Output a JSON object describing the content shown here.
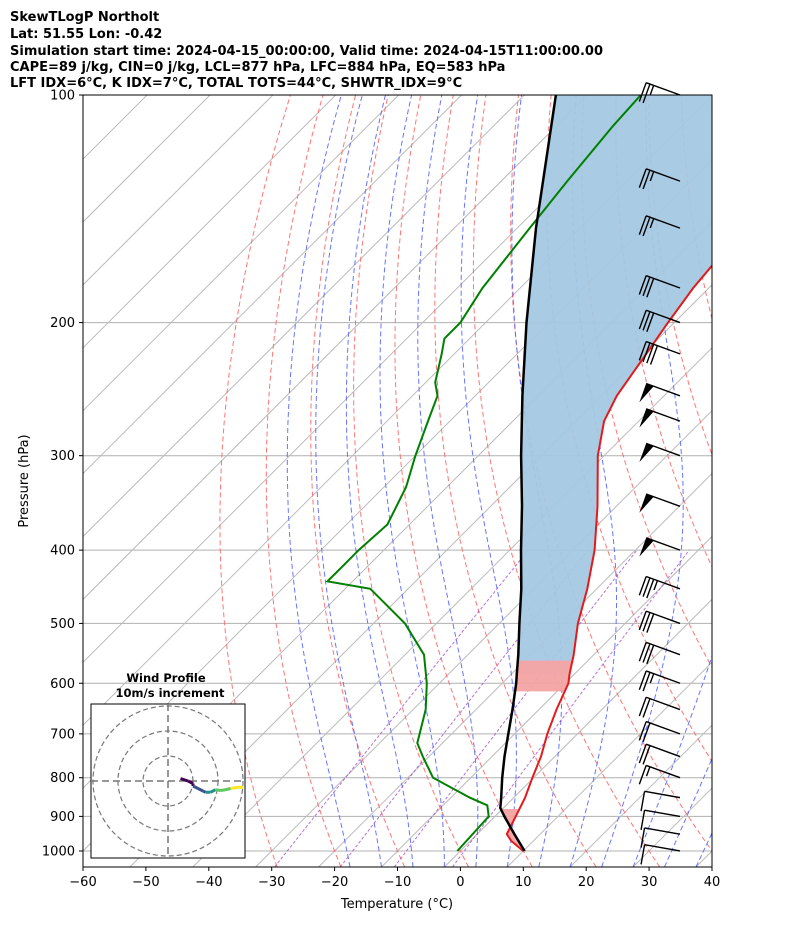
{
  "header": {
    "line1": "SkewTLogP Northolt",
    "line2": "Lat: 51.55   Lon: -0.42",
    "line3": "Simulation start time: 2024-04-15_00:00:00, Valid time: 2024-04-15T11:00:00.00",
    "line4": "CAPE=89 j/kg, CIN=0 j/kg, LCL=877 hPa, LFC=884 hPa, EQ=583 hPa",
    "line5": "LFT IDX=6°C, K IDX=7°C, TOTAL TOTS=44°C, SHWTR_IDX=9°C"
  },
  "inset": {
    "title1": "Wind Profile",
    "title2": "10m/s increment"
  },
  "colors": {
    "temperature": "#e31a1c",
    "dewpoint": "#008000",
    "parcel": "#000000",
    "cape_fill": "#a4c8e1",
    "cin_fill": "#f4a3a3",
    "dry_adiabat": "#ff6666",
    "moist_adiabat": "#5566ff",
    "mixing_ratio": "#9933cc",
    "isotherm": "#bbbbbb",
    "isobar": "#b0b0b0"
  },
  "chart_data": {
    "type": "line",
    "subtype": "skew-T log-P",
    "xlabel": "Temperature (°C)",
    "ylabel": "Pressure (hPa)",
    "xlim": [
      -60,
      40
    ],
    "ylim": [
      1050,
      100
    ],
    "y_scale": "log",
    "xticks": [
      -60,
      -50,
      -40,
      -30,
      -20,
      -10,
      0,
      10,
      20,
      30,
      40
    ],
    "xtick_labels": [
      "−60",
      "−50",
      "−40",
      "−30",
      "−20",
      "−10",
      "0",
      "10",
      "20",
      "30",
      "40"
    ],
    "yticks": [
      1000,
      900,
      800,
      700,
      600,
      500,
      400,
      300,
      200,
      100
    ],
    "ytick_labels": [
      "1000",
      "900",
      "800",
      "700",
      "600",
      "500",
      "400",
      "300",
      "200",
      "100"
    ],
    "grid": true,
    "series": [
      {
        "role": "temperature",
        "color": "#e31a1c",
        "points": [
          [
            1000,
            10.0
          ],
          [
            970,
            6.5
          ],
          [
            950,
            4.7
          ],
          [
            900,
            3.3
          ],
          [
            850,
            1.8
          ],
          [
            800,
            -0.2
          ],
          [
            750,
            -2.2
          ],
          [
            700,
            -4.8
          ],
          [
            650,
            -7.2
          ],
          [
            600,
            -9.5
          ],
          [
            583,
            -10.8
          ],
          [
            550,
            -13.2
          ],
          [
            500,
            -17.5
          ],
          [
            450,
            -21.5
          ],
          [
            400,
            -26.5
          ],
          [
            350,
            -33.0
          ],
          [
            300,
            -41.0
          ],
          [
            270,
            -45.5
          ],
          [
            250,
            -47.5
          ],
          [
            220,
            -49.5
          ],
          [
            200,
            -51.0
          ],
          [
            180,
            -52.5
          ],
          [
            150,
            -54.0
          ],
          [
            130,
            -54.5
          ],
          [
            120,
            -55.0
          ],
          [
            110,
            -55.5
          ],
          [
            100,
            -55.5
          ]
        ]
      },
      {
        "role": "dewpoint",
        "color": "#008000",
        "points": [
          [
            1000,
            -0.5
          ],
          [
            900,
            -1.0
          ],
          [
            870,
            -3.0
          ],
          [
            850,
            -7.0
          ],
          [
            800,
            -16.0
          ],
          [
            750,
            -21.0
          ],
          [
            720,
            -24.0
          ],
          [
            650,
            -28.0
          ],
          [
            600,
            -32.0
          ],
          [
            550,
            -37.0
          ],
          [
            500,
            -45.0
          ],
          [
            450,
            -56.0
          ],
          [
            440,
            -64.0
          ],
          [
            420,
            -64.0
          ],
          [
            400,
            -64.0
          ],
          [
            370,
            -63.5
          ],
          [
            330,
            -66.5
          ],
          [
            300,
            -70.0
          ],
          [
            270,
            -73.5
          ],
          [
            250,
            -76.0
          ],
          [
            240,
            -78.5
          ],
          [
            220,
            -82.0
          ],
          [
            210,
            -84.0
          ],
          [
            200,
            -84.0
          ],
          [
            180,
            -86.0
          ],
          [
            150,
            -88.0
          ],
          [
            130,
            -89.5
          ],
          [
            110,
            -91.0
          ],
          [
            100,
            -91.5
          ]
        ]
      },
      {
        "role": "parcel",
        "color": "#000000",
        "points": [
          [
            1000,
            10.2
          ],
          [
            950,
            5.9
          ],
          [
            900,
            1.5
          ],
          [
            877,
            -0.5
          ],
          [
            850,
            -2.0
          ],
          [
            800,
            -5.0
          ],
          [
            750,
            -8.0
          ],
          [
            700,
            -11.0
          ],
          [
            650,
            -14.2
          ],
          [
            600,
            -17.8
          ],
          [
            583,
            -19.2
          ],
          [
            550,
            -22.0
          ],
          [
            500,
            -26.8
          ],
          [
            450,
            -32.0
          ],
          [
            400,
            -38.2
          ],
          [
            350,
            -45.0
          ],
          [
            300,
            -53.2
          ],
          [
            250,
            -62.5
          ],
          [
            200,
            -73.5
          ],
          [
            150,
            -87.0
          ],
          [
            100,
            -105.0
          ]
        ]
      }
    ],
    "annotations": {
      "cape_region": "LFC (884 hPa) to EQ (583 hPa) parcel/temperature band, blue shaded",
      "cin_region": "red shaded band near 550-600 hPa"
    },
    "wind_barbs": [
      {
        "p": 100,
        "speed_kt": 25,
        "dir_deg": 290
      },
      {
        "p": 130,
        "speed_kt": 25,
        "dir_deg": 290
      },
      {
        "p": 150,
        "speed_kt": 25,
        "dir_deg": 290
      },
      {
        "p": 180,
        "speed_kt": 30,
        "dir_deg": 290
      },
      {
        "p": 200,
        "speed_kt": 30,
        "dir_deg": 290
      },
      {
        "p": 220,
        "speed_kt": 40,
        "dir_deg": 290
      },
      {
        "p": 250,
        "speed_kt": 50,
        "dir_deg": 290
      },
      {
        "p": 270,
        "speed_kt": 50,
        "dir_deg": 290
      },
      {
        "p": 300,
        "speed_kt": 50,
        "dir_deg": 290
      },
      {
        "p": 350,
        "speed_kt": 50,
        "dir_deg": 290
      },
      {
        "p": 400,
        "speed_kt": 50,
        "dir_deg": 290
      },
      {
        "p": 450,
        "speed_kt": 35,
        "dir_deg": 290
      },
      {
        "p": 500,
        "speed_kt": 30,
        "dir_deg": 290
      },
      {
        "p": 550,
        "speed_kt": 30,
        "dir_deg": 290
      },
      {
        "p": 600,
        "speed_kt": 25,
        "dir_deg": 290
      },
      {
        "p": 650,
        "speed_kt": 20,
        "dir_deg": 290
      },
      {
        "p": 700,
        "speed_kt": 20,
        "dir_deg": 290
      },
      {
        "p": 750,
        "speed_kt": 20,
        "dir_deg": 290
      },
      {
        "p": 800,
        "speed_kt": 15,
        "dir_deg": 290
      },
      {
        "p": 850,
        "speed_kt": 10,
        "dir_deg": 280
      },
      {
        "p": 900,
        "speed_kt": 10,
        "dir_deg": 280
      },
      {
        "p": 950,
        "speed_kt": 10,
        "dir_deg": 280
      },
      {
        "p": 1000,
        "speed_kt": 10,
        "dir_deg": 280
      }
    ],
    "wind_profile": {
      "title": "Wind Profile",
      "subtitle": "10m/s increment",
      "rings_ms": [
        10,
        20,
        30
      ],
      "hodograph": [
        {
          "u": 5.0,
          "v": 1.0
        },
        {
          "u": 8.0,
          "v": 0.0
        },
        {
          "u": 10.0,
          "v": -1.0
        },
        {
          "u": 10.0,
          "v": -2.0
        },
        {
          "u": 12.0,
          "v": -3.0
        },
        {
          "u": 14.0,
          "v": -4.0
        },
        {
          "u": 15.0,
          "v": -4.5
        },
        {
          "u": 17.0,
          "v": -4.5
        },
        {
          "u": 19.0,
          "v": -3.5
        },
        {
          "u": 21.0,
          "v": -3.8
        },
        {
          "u": 23.0,
          "v": -3.5
        },
        {
          "u": 25.0,
          "v": -3.0
        },
        {
          "u": 28.0,
          "v": -2.5
        },
        {
          "u": 30.0,
          "v": -2.5
        }
      ]
    }
  }
}
